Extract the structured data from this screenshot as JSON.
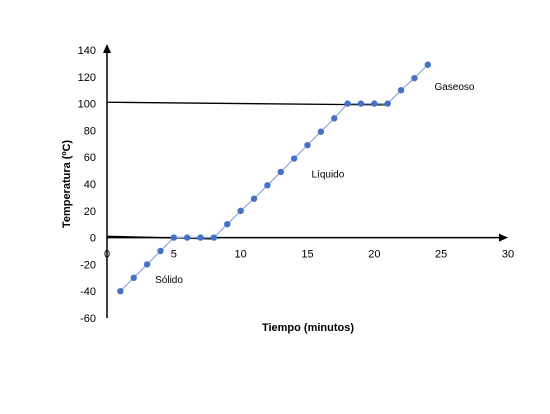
{
  "chart_data": {
    "type": "scatter",
    "title": "",
    "xlabel": "Tiempo (minutos)",
    "ylabel": "Temperatura (ºC)",
    "xlim": [
      0,
      30
    ],
    "ylim": [
      -60,
      140
    ],
    "xticks": [
      0,
      5,
      10,
      15,
      20,
      25,
      30
    ],
    "yticks": [
      -60,
      -40,
      -20,
      0,
      20,
      40,
      60,
      80,
      100,
      120,
      140
    ],
    "grid": false,
    "legend": "none",
    "colors": {
      "series": "#4472C4",
      "series_line": "#8FA9D8",
      "reference": "#000000",
      "axis": "#000000"
    },
    "series": [
      {
        "values": [
          [
            1,
            -40
          ],
          [
            2,
            -30
          ],
          [
            3,
            -20
          ],
          [
            4,
            -10
          ],
          [
            5,
            0
          ],
          [
            6,
            0
          ],
          [
            7,
            0
          ],
          [
            8,
            0
          ],
          [
            9,
            10
          ],
          [
            10,
            20
          ],
          [
            11,
            29
          ],
          [
            12,
            39
          ],
          [
            13,
            49
          ],
          [
            14,
            59
          ],
          [
            15,
            69
          ],
          [
            16,
            79
          ],
          [
            17,
            89
          ],
          [
            18,
            100
          ],
          [
            19,
            100
          ],
          [
            20,
            100
          ],
          [
            21,
            100
          ],
          [
            22,
            110
          ],
          [
            23,
            119
          ],
          [
            24,
            129
          ]
        ]
      }
    ],
    "reference_lines": [
      {
        "from": [
          0,
          101
        ],
        "to": [
          21,
          99
        ]
      },
      {
        "from": [
          0,
          1
        ],
        "to": [
          8,
          -1
        ]
      }
    ],
    "annotations": [
      {
        "text": "Sólido",
        "x": 3.6,
        "y": -34
      },
      {
        "text": "Líquido",
        "x": 15.3,
        "y": 45
      },
      {
        "text": "Gaseoso",
        "x": 24.5,
        "y": 110
      }
    ]
  }
}
